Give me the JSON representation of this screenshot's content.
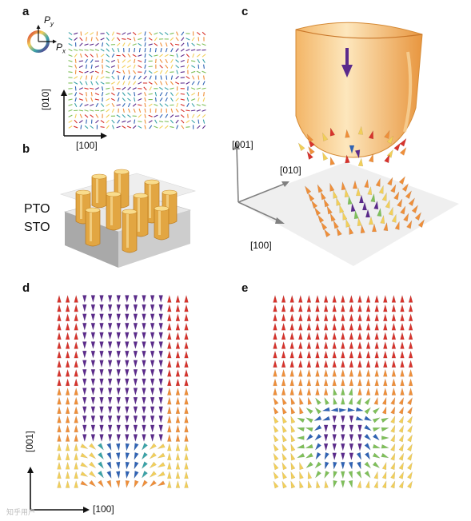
{
  "panels": {
    "a": {
      "letter": "a",
      "legend_py": "P",
      "legend_py_sub": "y",
      "legend_px": "P",
      "legend_px_sub": "x",
      "axis_x": "[100]",
      "axis_y": "[010]"
    },
    "b": {
      "letter": "b",
      "layer_top": "PTO",
      "layer_bottom": "STO"
    },
    "c": {
      "letter": "c",
      "axis_001": "[001]",
      "axis_010": "[010]",
      "axis_100": "[100]"
    },
    "d": {
      "letter": "d",
      "axis_y": "[001]",
      "axis_x": "[100]"
    },
    "e": {
      "letter": "e"
    }
  },
  "colors": {
    "red": "#d7332c",
    "orange": "#ef8f3a",
    "yellow": "#f2cf5a",
    "green": "#7fc05a",
    "teal": "#3aa3a8",
    "blue": "#2f63b5",
    "purple": "#5b2a8c",
    "cup": "#f7c980"
  },
  "watermark": "知乎用户"
}
